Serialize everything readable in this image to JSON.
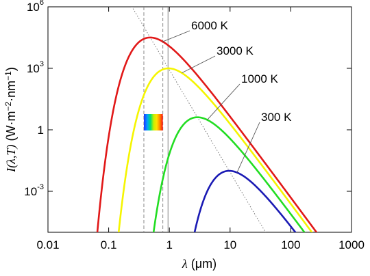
{
  "chart_data": {
    "type": "line",
    "xscale": "log",
    "yscale": "log",
    "xlim": [
      0.01,
      1000
    ],
    "ylim": [
      1e-05,
      1000000
    ],
    "grid": false,
    "xlabel_symbol": "λ",
    "xlabel_unit": " (μm)",
    "ylabel_func": "I(λ,T)",
    "ylabel_unit": " (W·m",
    "ylabel_unit_sup1": "−2",
    "ylabel_unit_mid": "·nm",
    "ylabel_unit_sup2": "−1",
    "ylabel_unit_end": ")",
    "xticks": [
      {
        "value": 0.01,
        "label": "0.01"
      },
      {
        "value": 0.1,
        "label": "0.1"
      },
      {
        "value": 1,
        "label": "1"
      },
      {
        "value": 10,
        "label": "10"
      },
      {
        "value": 100,
        "label": "100"
      },
      {
        "value": 1000,
        "label": "1000"
      }
    ],
    "yticks": [
      {
        "value": 0.001,
        "base": "10",
        "exp": "-3"
      },
      {
        "value": 1,
        "base": "1",
        "exp": ""
      },
      {
        "value": 1000,
        "base": "10",
        "exp": "3"
      },
      {
        "value": 1000000,
        "base": "10",
        "exp": "6"
      }
    ],
    "series": [
      {
        "name": "6000 K",
        "temperature": 6000,
        "color": "#e11818"
      },
      {
        "name": "3000 K",
        "temperature": 3000,
        "color": "#f5f500"
      },
      {
        "name": "1000 K",
        "temperature": 1000,
        "color": "#22dd22"
      },
      {
        "name": "300 K",
        "temperature": 300,
        "color": "#1a1ab4"
      }
    ],
    "wien_line": {
      "color": "#777777",
      "style": "dotted"
    },
    "visible_band": {
      "x_min": 0.38,
      "x_max": 0.78,
      "marker_x": 0.95
    }
  }
}
